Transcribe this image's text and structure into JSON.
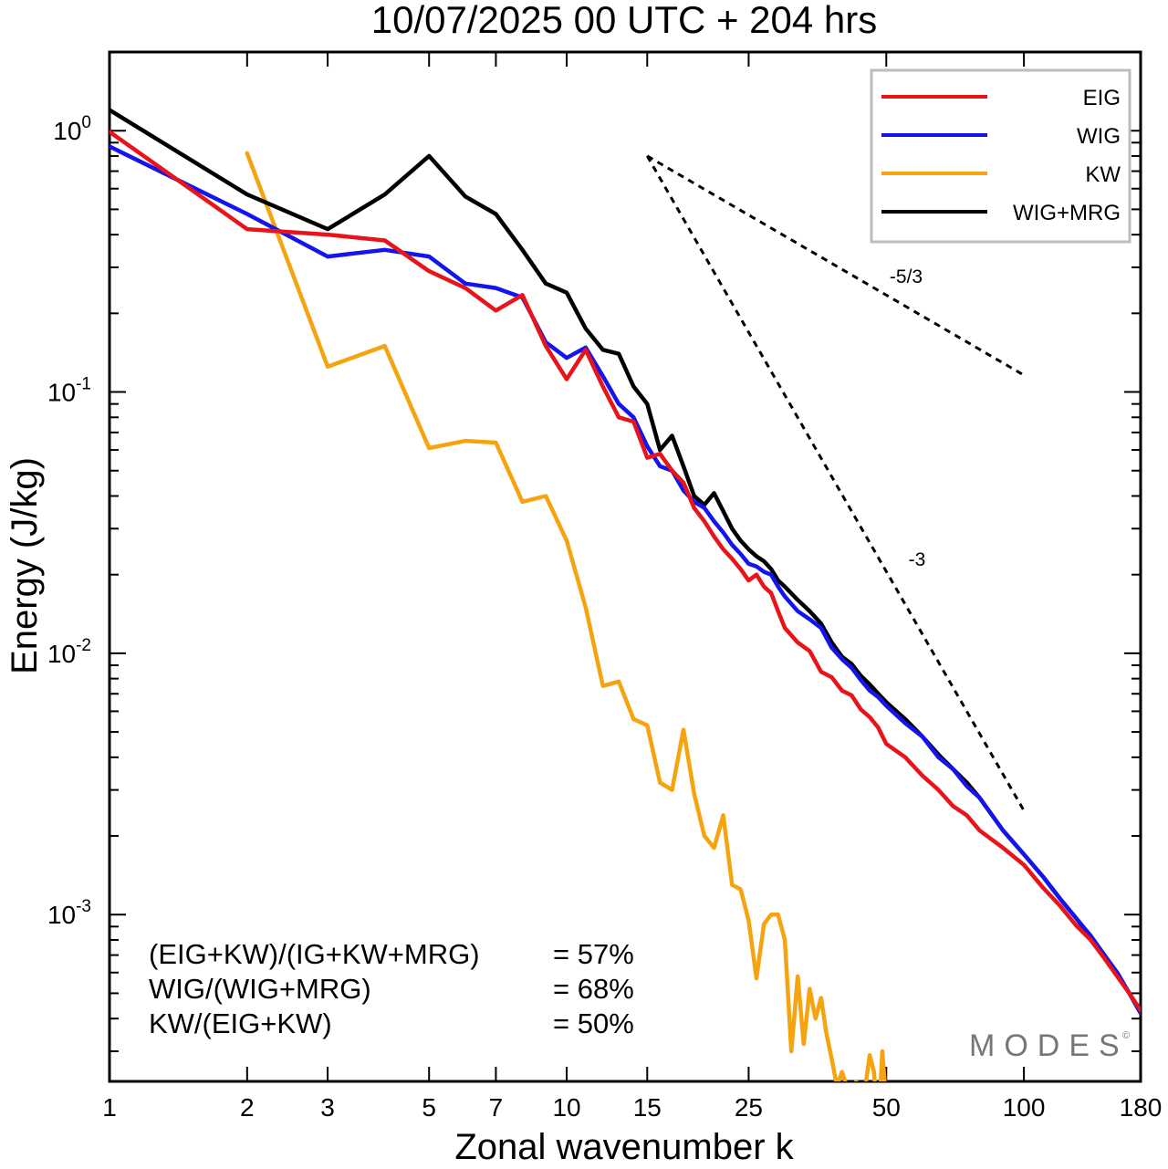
{
  "chart_data": {
    "type": "line",
    "title": "10/07/2025  00 UTC  + 204 hrs",
    "xlabel": "Zonal wavenumber k",
    "ylabel": "Energy (J/kg)",
    "xscale": "log",
    "yscale": "log",
    "xlim": [
      1,
      180
    ],
    "ylim": [
      0.00023,
      2.0
    ],
    "xticks": [
      1,
      2,
      3,
      5,
      7,
      10,
      15,
      25,
      50,
      100,
      180
    ],
    "xtick_labels": [
      "1",
      "2",
      "3",
      "5",
      "7",
      "10",
      "15",
      "25",
      "50",
      "100",
      "180"
    ],
    "yticks": [
      1,
      0.1,
      0.01,
      0.001
    ],
    "ytick_labels": [
      {
        "base": "10",
        "exp": "0"
      },
      {
        "base": "10",
        "exp": "-1"
      },
      {
        "base": "10",
        "exp": "-2"
      },
      {
        "base": "10",
        "exp": "-3"
      }
    ],
    "grid": false,
    "legend_position": "top-right",
    "series": [
      {
        "name": "EIG",
        "color": "#e8141a",
        "x": [
          1,
          2,
          3,
          4,
          5,
          6,
          7,
          8,
          9,
          10,
          11,
          12,
          13,
          14,
          15,
          16,
          17,
          18,
          19,
          20,
          21,
          22,
          23,
          24,
          25,
          26,
          27,
          28,
          29,
          30,
          32,
          34,
          36,
          38,
          40,
          42,
          44,
          46,
          48,
          50,
          55,
          60,
          65,
          70,
          75,
          80,
          90,
          100,
          110,
          120,
          130,
          140,
          150,
          160,
          170,
          180
        ],
        "y": [
          0.99,
          0.42,
          0.4,
          0.38,
          0.29,
          0.25,
          0.205,
          0.235,
          0.15,
          0.112,
          0.145,
          0.105,
          0.08,
          0.077,
          0.056,
          0.058,
          0.05,
          0.045,
          0.036,
          0.032,
          0.028,
          0.025,
          0.023,
          0.021,
          0.019,
          0.02,
          0.018,
          0.017,
          0.0145,
          0.0125,
          0.011,
          0.0102,
          0.0085,
          0.0081,
          0.0072,
          0.0069,
          0.0061,
          0.0057,
          0.0052,
          0.0045,
          0.004,
          0.0034,
          0.003,
          0.0026,
          0.0024,
          0.0021,
          0.0018,
          0.00155,
          0.00127,
          0.00108,
          0.00091,
          0.0008,
          0.00068,
          0.00058,
          0.0005,
          0.00043
        ]
      },
      {
        "name": "WIG",
        "color": "#1414ee",
        "x": [
          1,
          2,
          3,
          4,
          5,
          6,
          7,
          8,
          9,
          10,
          11,
          12,
          13,
          14,
          15,
          16,
          17,
          18,
          19,
          20,
          21,
          22,
          23,
          24,
          25,
          26,
          27,
          28,
          29,
          30,
          32,
          34,
          36,
          38,
          40,
          42,
          44,
          46,
          48,
          50,
          55,
          60,
          65,
          70,
          75,
          80,
          90,
          100,
          110,
          120,
          130,
          140,
          150,
          160,
          170,
          180
        ],
        "y": [
          0.87,
          0.48,
          0.33,
          0.35,
          0.33,
          0.26,
          0.25,
          0.23,
          0.155,
          0.135,
          0.148,
          0.115,
          0.09,
          0.08,
          0.062,
          0.052,
          0.05,
          0.042,
          0.038,
          0.036,
          0.032,
          0.029,
          0.026,
          0.024,
          0.022,
          0.0215,
          0.0205,
          0.02,
          0.018,
          0.0165,
          0.0145,
          0.0135,
          0.0125,
          0.0105,
          0.0095,
          0.0088,
          0.0079,
          0.0072,
          0.0068,
          0.0063,
          0.0054,
          0.0048,
          0.004,
          0.0036,
          0.0031,
          0.0028,
          0.0021,
          0.0017,
          0.0014,
          0.00115,
          0.00097,
          0.00083,
          0.0007,
          0.0006,
          0.0005,
          0.00042
        ]
      },
      {
        "name": "KW",
        "color": "#f5a40f",
        "x": [
          2,
          3,
          4,
          5,
          6,
          7,
          8,
          9,
          10,
          11,
          12,
          13,
          14,
          15,
          16,
          17,
          18,
          19,
          20,
          21,
          22,
          23,
          24,
          25,
          26,
          27,
          28,
          29,
          30,
          31,
          32,
          33,
          34,
          35,
          36,
          37,
          38,
          39,
          40,
          41,
          42,
          43,
          44,
          45,
          46,
          47,
          48,
          49,
          50
        ],
        "y": [
          0.82,
          0.125,
          0.15,
          0.061,
          0.065,
          0.064,
          0.038,
          0.04,
          0.027,
          0.015,
          0.0075,
          0.0078,
          0.0056,
          0.0053,
          0.0032,
          0.003,
          0.0051,
          0.0029,
          0.002,
          0.0018,
          0.0024,
          0.0013,
          0.00125,
          0.00095,
          0.00057,
          0.00092,
          0.001,
          0.001,
          0.0008,
          0.0003,
          0.00058,
          0.00032,
          0.00052,
          0.0004,
          0.00048,
          0.00035,
          0.00028,
          0.00022,
          0.00025,
          0.00022,
          0.00018,
          0.00023,
          0.00015,
          0.00022,
          0.00029,
          0.00025,
          0.00015,
          0.0003,
          0.00019
        ]
      },
      {
        "name": "WIG+MRG",
        "color": "#000000",
        "x": [
          1,
          2,
          3,
          4,
          5,
          6,
          7,
          8,
          9,
          10,
          11,
          12,
          13,
          14,
          15,
          16,
          17,
          18,
          19,
          20,
          21,
          22,
          23,
          24,
          25,
          26,
          27,
          28,
          29,
          30,
          32,
          34,
          36,
          38,
          40,
          42,
          44,
          46,
          48,
          50,
          55,
          60,
          65,
          70,
          75,
          80,
          90,
          100,
          110,
          120,
          130,
          140,
          150,
          160,
          170,
          180
        ],
        "y": [
          1.2,
          0.57,
          0.42,
          0.57,
          0.8,
          0.56,
          0.48,
          0.35,
          0.26,
          0.24,
          0.175,
          0.145,
          0.14,
          0.105,
          0.09,
          0.06,
          0.068,
          0.052,
          0.04,
          0.037,
          0.041,
          0.035,
          0.03,
          0.027,
          0.025,
          0.0235,
          0.0225,
          0.021,
          0.019,
          0.018,
          0.016,
          0.0145,
          0.013,
          0.011,
          0.0097,
          0.0091,
          0.0082,
          0.0076,
          0.007,
          0.0065,
          0.0056,
          0.0048,
          0.0041,
          0.0036,
          0.0032,
          0.0028,
          0.0021,
          0.0017,
          0.0014,
          0.00115,
          0.00097,
          0.00082,
          0.0007,
          0.00059,
          0.0005,
          0.00042
        ]
      }
    ],
    "reference_lines": [
      {
        "label": "-5/3",
        "x": [
          15,
          100
        ],
        "y": [
          0.8,
          0.116
        ]
      },
      {
        "label": "-3",
        "x": [
          15,
          100
        ],
        "y": [
          0.8,
          0.0025
        ]
      }
    ],
    "annotations": [
      {
        "label": "(EIG+KW)/(IG+KW+MRG)",
        "value": "= 57%"
      },
      {
        "label": "WIG/(WIG+MRG)",
        "value": "= 68%"
      },
      {
        "label": "KW/(EIG+KW)",
        "value": "= 50%"
      }
    ],
    "watermark": "MODES"
  }
}
